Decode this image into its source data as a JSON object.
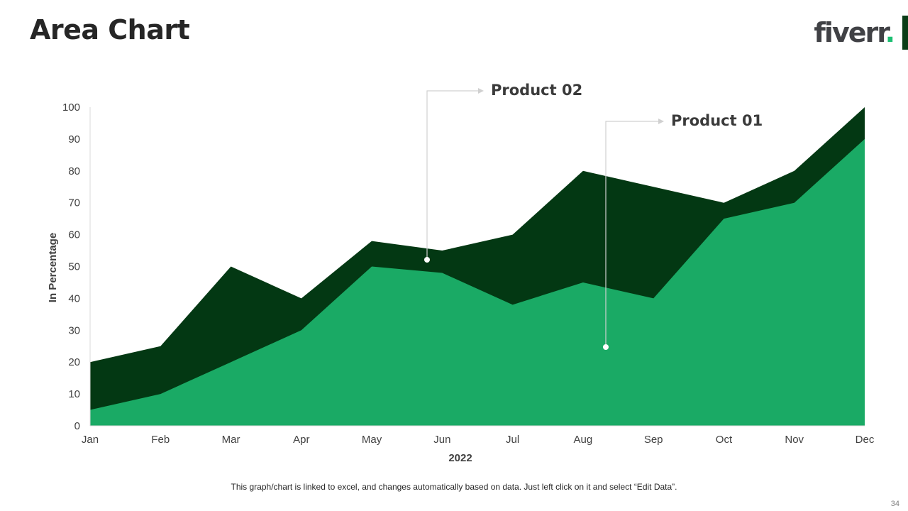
{
  "slide": {
    "title": "Area Chart",
    "logo_text": "fiverr",
    "logo_dot": ".",
    "footer_note": "This graph/chart is linked to excel, and changes automatically based on data. Just left click on it and select “Edit Data”.",
    "page_number": "34"
  },
  "colors": {
    "product_01": "#1aaa65",
    "product_02": "#033813",
    "logo_text": "#404145",
    "logo_dot": "#1dbf73"
  },
  "chart_data": {
    "type": "area",
    "xlabel": "2022",
    "ylabel": "In Percentage",
    "ylim": [
      0,
      100
    ],
    "yticks": [
      0,
      10,
      20,
      30,
      40,
      50,
      60,
      70,
      80,
      90,
      100
    ],
    "categories": [
      "Jan",
      "Feb",
      "Mar",
      "Apr",
      "May",
      "Jun",
      "Jul",
      "Aug",
      "Sep",
      "Oct",
      "Nov",
      "Dec"
    ],
    "series": [
      {
        "name": "Product 02",
        "values": [
          20,
          25,
          50,
          40,
          58,
          55,
          60,
          80,
          75,
          70,
          80,
          100
        ]
      },
      {
        "name": "Product 01",
        "values": [
          5,
          10,
          20,
          30,
          50,
          48,
          38,
          45,
          40,
          65,
          70,
          90
        ]
      }
    ],
    "grid": false,
    "legend": "callouts"
  }
}
